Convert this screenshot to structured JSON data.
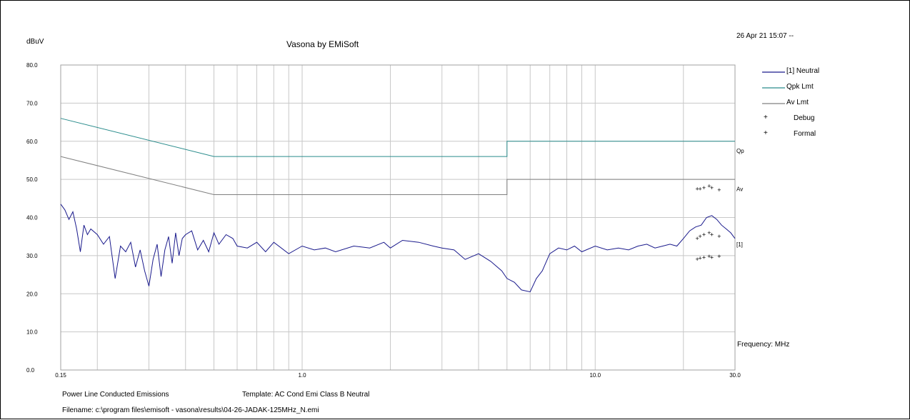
{
  "timestamp": "26 Apr 21 15:07 --",
  "footer": {
    "description": "Power Line Conducted Emissions",
    "template": "Template: AC Cond Emi Class B Neutral",
    "filename": "Filename: c:\\program files\\emisoft - vasona\\results\\04-26-JADAK-125MHz_N.emi"
  },
  "colors": {
    "neutral": "#1a1a8c",
    "qpk_limit": "#2a8c8c",
    "av_limit": "#808080",
    "debug": "#8b1a1a",
    "formal": "#1a3a1a",
    "grid": "#c8c8c8"
  },
  "chart_data": {
    "type": "line",
    "title": "Vasona by EMiSoft",
    "ylabel": "dBuV",
    "xlabel": "Frequency: MHz",
    "x_scale": "log",
    "xlim": [
      0.15,
      30.0
    ],
    "ylim": [
      0.0,
      80.0
    ],
    "x_tick_labels": [
      "0.15",
      "1.0",
      "10.0",
      "30.0"
    ],
    "x_ticks": [
      0.15,
      1.0,
      10.0,
      30.0
    ],
    "y_tick_labels": [
      "0.0",
      "10.0",
      "20.0",
      "30.0",
      "40.0",
      "50.0",
      "60.0",
      "70.0",
      "80.0"
    ],
    "y_ticks": [
      0,
      10,
      20,
      30,
      40,
      50,
      60,
      70,
      80
    ],
    "grid": true,
    "legend_position": "right",
    "right_labels": [
      {
        "text": "Qp",
        "y": 57.5
      },
      {
        "text": "Av",
        "y": 47.5
      },
      {
        "text": "[1]",
        "y": 33.0
      }
    ],
    "series": [
      {
        "name": "[1] Neutral",
        "style": "line",
        "color": "#1a1a8c",
        "x": [
          0.15,
          0.155,
          0.16,
          0.165,
          0.17,
          0.175,
          0.18,
          0.185,
          0.19,
          0.2,
          0.21,
          0.22,
          0.23,
          0.24,
          0.25,
          0.26,
          0.27,
          0.28,
          0.29,
          0.3,
          0.31,
          0.32,
          0.33,
          0.34,
          0.35,
          0.36,
          0.37,
          0.38,
          0.39,
          0.4,
          0.42,
          0.44,
          0.46,
          0.48,
          0.5,
          0.52,
          0.55,
          0.58,
          0.6,
          0.65,
          0.7,
          0.75,
          0.8,
          0.9,
          1.0,
          1.1,
          1.2,
          1.3,
          1.5,
          1.7,
          1.9,
          2.0,
          2.2,
          2.5,
          2.8,
          3.0,
          3.3,
          3.6,
          4.0,
          4.4,
          4.8,
          5.0,
          5.3,
          5.6,
          6.0,
          6.3,
          6.6,
          7.0,
          7.5,
          8.0,
          8.5,
          9.0,
          10.0,
          11.0,
          12.0,
          13.0,
          14.0,
          15.0,
          16.0,
          17.0,
          18.0,
          19.0,
          20.0,
          21.0,
          22.0,
          23.0,
          24.0,
          25.0,
          26.0,
          27.0,
          28.0,
          29.0,
          30.0
        ],
        "y": [
          43.5,
          42.0,
          39.5,
          41.5,
          37.0,
          31.0,
          38.0,
          35.5,
          37.0,
          35.5,
          33.0,
          35.0,
          24.0,
          32.5,
          31.0,
          33.5,
          27.0,
          31.5,
          26.0,
          22.0,
          29.0,
          33.0,
          24.5,
          31.5,
          35.0,
          28.0,
          36.0,
          30.0,
          34.5,
          35.5,
          36.5,
          31.5,
          34.0,
          31.0,
          36.0,
          33.0,
          35.5,
          34.5,
          32.5,
          32.0,
          33.5,
          31.0,
          33.5,
          30.5,
          32.5,
          31.5,
          32.0,
          31.0,
          32.5,
          32.0,
          33.5,
          32.0,
          34.0,
          33.5,
          32.5,
          32.0,
          31.5,
          29.0,
          30.5,
          28.5,
          26.0,
          24.0,
          23.0,
          21.0,
          20.5,
          24.0,
          26.0,
          30.5,
          32.0,
          31.5,
          32.5,
          31.0,
          32.5,
          31.5,
          32.0,
          31.5,
          32.5,
          33.0,
          32.0,
          32.5,
          33.0,
          32.5,
          34.5,
          36.5,
          37.5,
          38.0,
          40.0,
          40.5,
          39.5,
          38.0,
          37.0,
          36.0,
          34.5
        ]
      },
      {
        "name": "Qpk Lmt",
        "style": "line",
        "color": "#2a8c8c",
        "x": [
          0.15,
          0.5,
          5.0,
          5.0,
          30.0
        ],
        "y": [
          66.0,
          56.0,
          56.0,
          60.0,
          60.0
        ]
      },
      {
        "name": "Av Lmt",
        "style": "line",
        "color": "#808080",
        "x": [
          0.15,
          0.5,
          5.0,
          5.0,
          30.0
        ],
        "y": [
          56.0,
          46.0,
          46.0,
          50.0,
          50.0
        ]
      },
      {
        "name": "Debug",
        "style": "marker",
        "color": "#8b1a1a",
        "x": [
          22.3,
          22.8,
          23.5,
          24.5,
          25.0,
          26.5
        ],
        "y": [
          47.5,
          47.5,
          47.8,
          48.2,
          47.8,
          47.2
        ]
      },
      {
        "name": "Formal",
        "style": "marker",
        "color": "#1a3a1a",
        "x": [
          22.3,
          22.8,
          23.5,
          24.5,
          25.0,
          26.5,
          22.3,
          22.8,
          23.5,
          24.5,
          25.0,
          26.5
        ],
        "y": [
          29.0,
          29.3,
          29.5,
          29.8,
          29.5,
          29.8,
          34.5,
          35.0,
          35.5,
          36.0,
          35.5,
          35.0
        ]
      }
    ]
  }
}
